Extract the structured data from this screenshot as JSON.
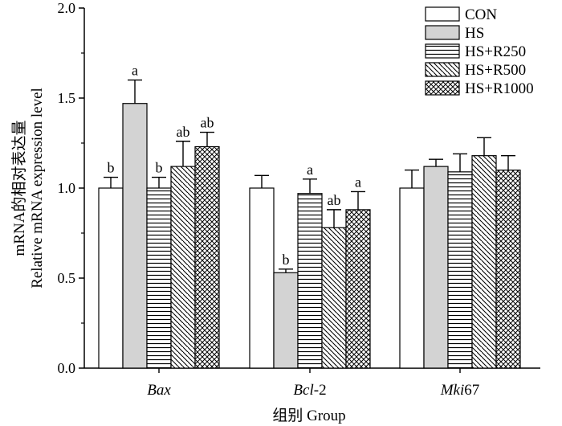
{
  "chart_data": {
    "type": "bar",
    "title": "",
    "categories": [
      {
        "name": "Bax",
        "italic_part": "Bax",
        "plain_part": ""
      },
      {
        "name": "Bcl-2",
        "italic_part": "Bcl",
        "plain_part": "-2"
      },
      {
        "name": "Mki67",
        "italic_part": "Mki",
        "plain_part": "67"
      }
    ],
    "series": [
      {
        "name": "CON",
        "pattern": "white",
        "values": [
          1.0,
          1.0,
          1.0
        ],
        "errors": [
          0.06,
          0.07,
          0.1
        ],
        "labels": [
          "b",
          "",
          ""
        ]
      },
      {
        "name": "HS",
        "pattern": "gray",
        "values": [
          1.47,
          0.53,
          1.12
        ],
        "errors": [
          0.13,
          0.02,
          0.04
        ],
        "labels": [
          "a",
          "b",
          ""
        ]
      },
      {
        "name": "HS+R250",
        "pattern": "hlines",
        "values": [
          1.0,
          0.97,
          1.09
        ],
        "errors": [
          0.06,
          0.08,
          0.1
        ],
        "labels": [
          "b",
          "a",
          ""
        ]
      },
      {
        "name": "HS+R500",
        "pattern": "diag",
        "values": [
          1.12,
          0.78,
          1.18
        ],
        "errors": [
          0.14,
          0.1,
          0.1
        ],
        "labels": [
          "ab",
          "ab",
          ""
        ]
      },
      {
        "name": "HS+R1000",
        "pattern": "cross",
        "values": [
          1.23,
          0.88,
          1.1
        ],
        "errors": [
          0.08,
          0.1,
          0.08
        ],
        "labels": [
          "ab",
          "a",
          ""
        ]
      }
    ],
    "xlabel": "组别  Group",
    "ylabel_line1": "mRNA的相对表达量",
    "ylabel_line2": "Relative mRNA expression level",
    "ylim": [
      0.0,
      2.0
    ],
    "yticks": [
      "0.0",
      "0.5",
      "1.0",
      "1.5",
      "2.0"
    ],
    "legend_position": "top-right"
  }
}
